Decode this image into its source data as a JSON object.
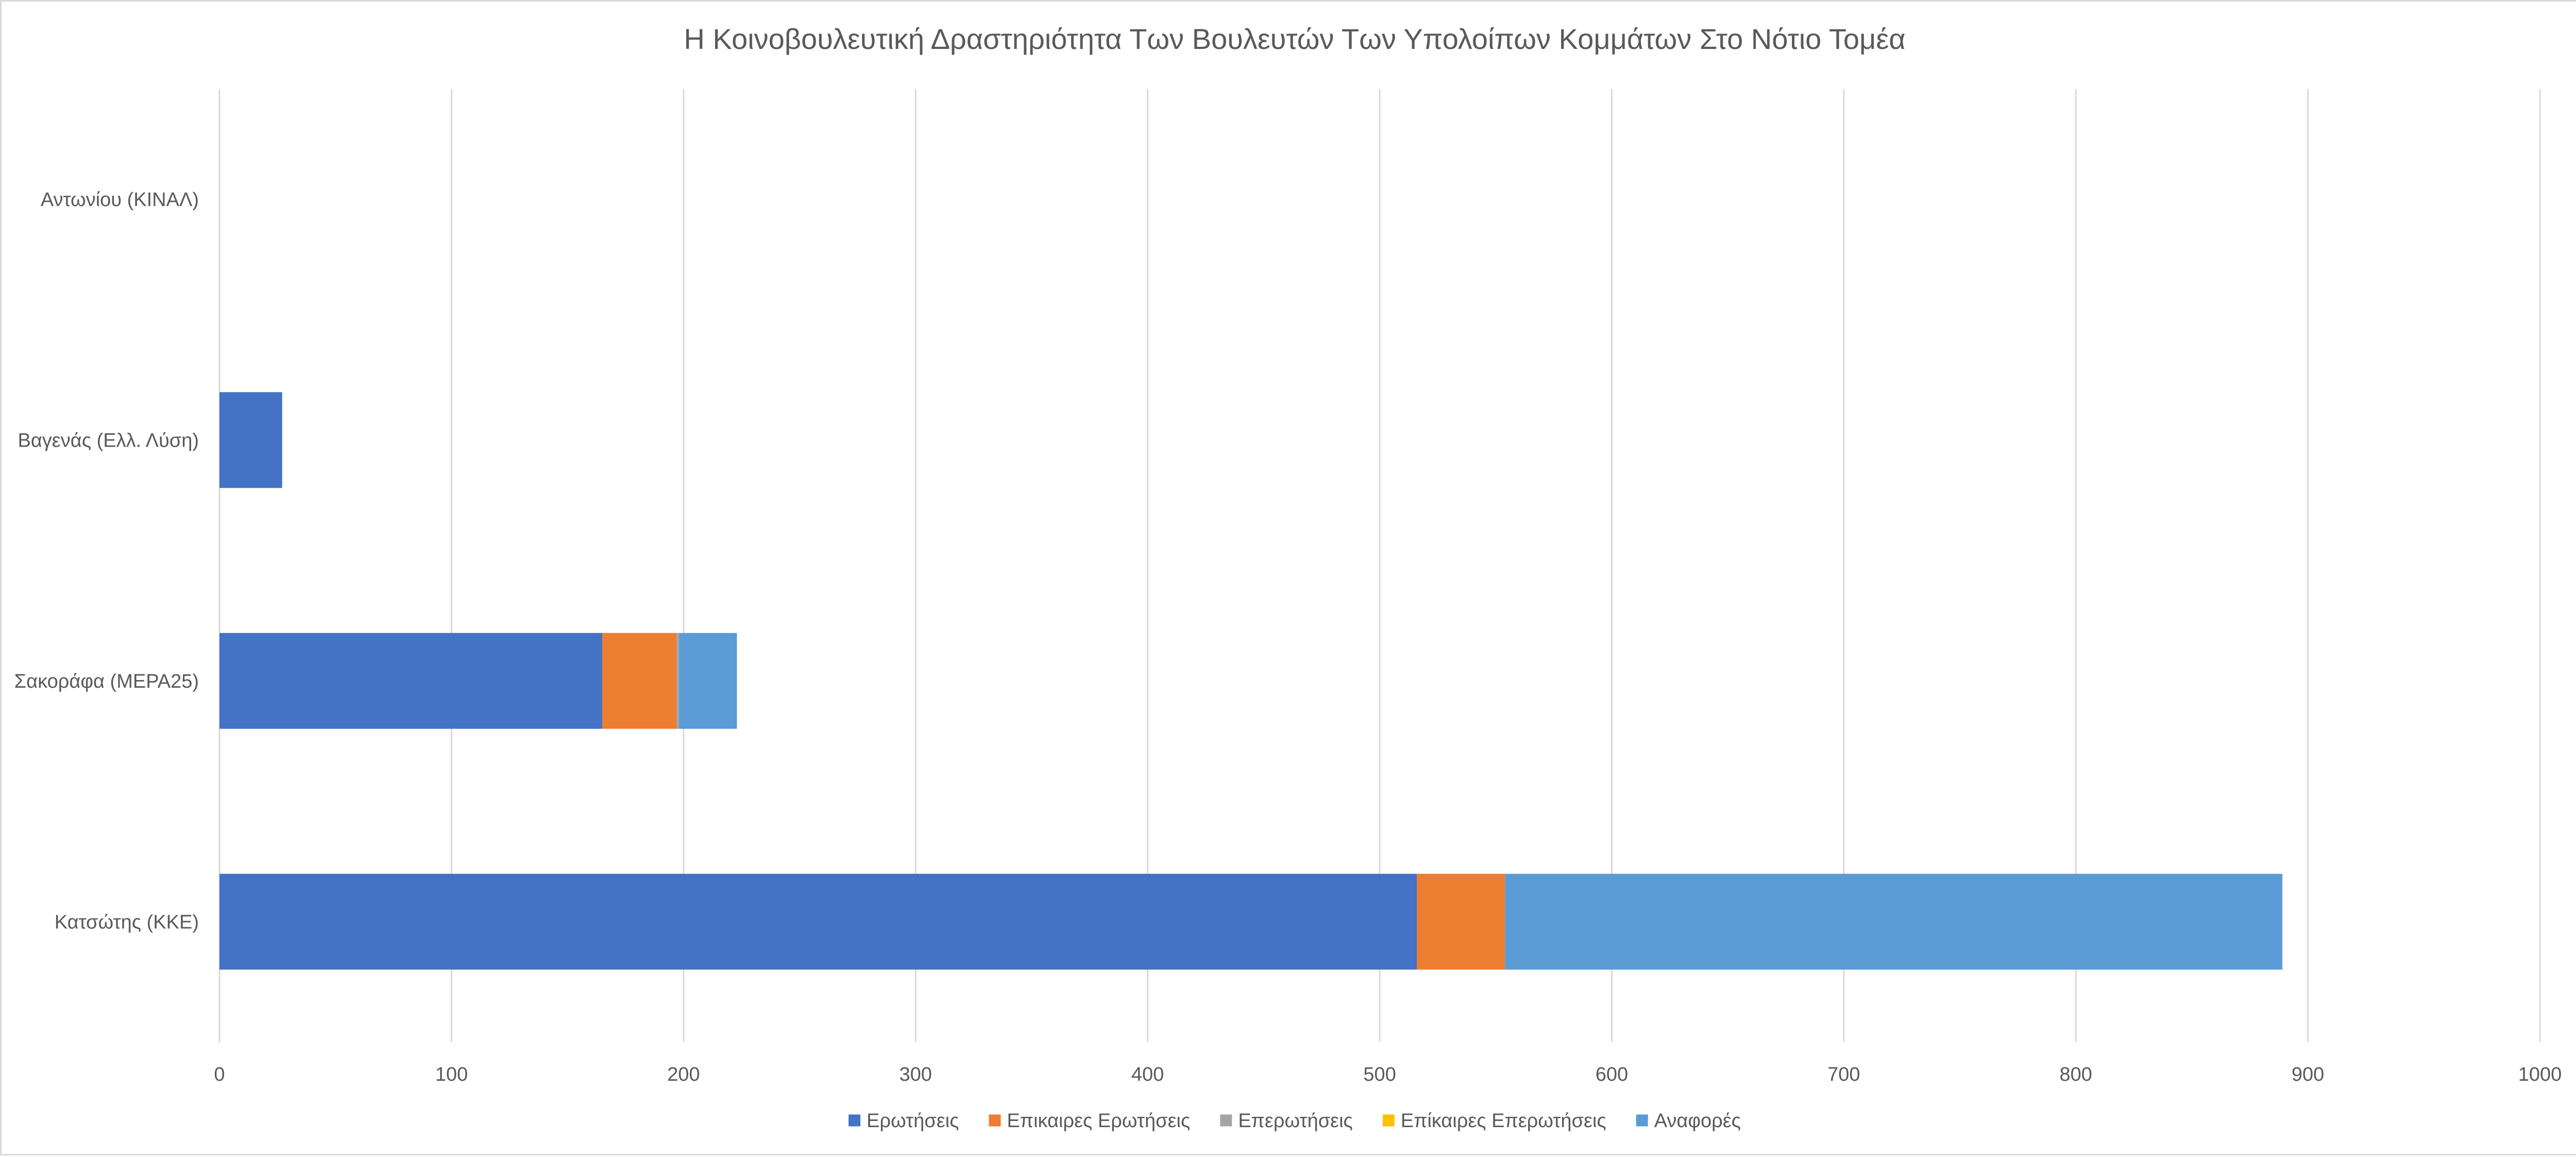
{
  "chart_data": {
    "type": "bar",
    "orientation": "horizontal",
    "stacked": true,
    "title": "Η Κοινοβουλευτική Δραστηριότητα Των Βουλευτών Των Υπολοίπων Κομμάτων Στο Νότιο Τομέα",
    "categories": [
      "Κατσώτης (ΚΚΕ)",
      "Σακοράφα (ΜΕΡΑ25)",
      "Βαγενάς (Ελλ. Λύση)",
      "Αντωνίου (ΚΙΝΑΛ)"
    ],
    "series": [
      {
        "name": "Ερωτήσεις",
        "color": "#4472c4",
        "values": [
          516,
          165,
          27,
          0
        ]
      },
      {
        "name": "Επικαιρες Ερωτήσεις",
        "color": "#ed7d31",
        "values": [
          38,
          32,
          0,
          0
        ]
      },
      {
        "name": "Επερωτήσεις",
        "color": "#a5a5a5",
        "values": [
          0,
          1,
          0,
          0
        ]
      },
      {
        "name": "Επίκαιρες Επερωτήσεις",
        "color": "#ffc000",
        "values": [
          0,
          0,
          0,
          0
        ]
      },
      {
        "name": "Αναφορές",
        "color": "#5b9bd5",
        "values": [
          335,
          25,
          0,
          0
        ]
      }
    ],
    "xlim": [
      0,
      1000
    ],
    "xticks": [
      0,
      100,
      200,
      300,
      400,
      500,
      600,
      700,
      800,
      900,
      1000
    ],
    "xlabel": "",
    "ylabel": "",
    "grid": "vertical",
    "legend_position": "bottom"
  }
}
